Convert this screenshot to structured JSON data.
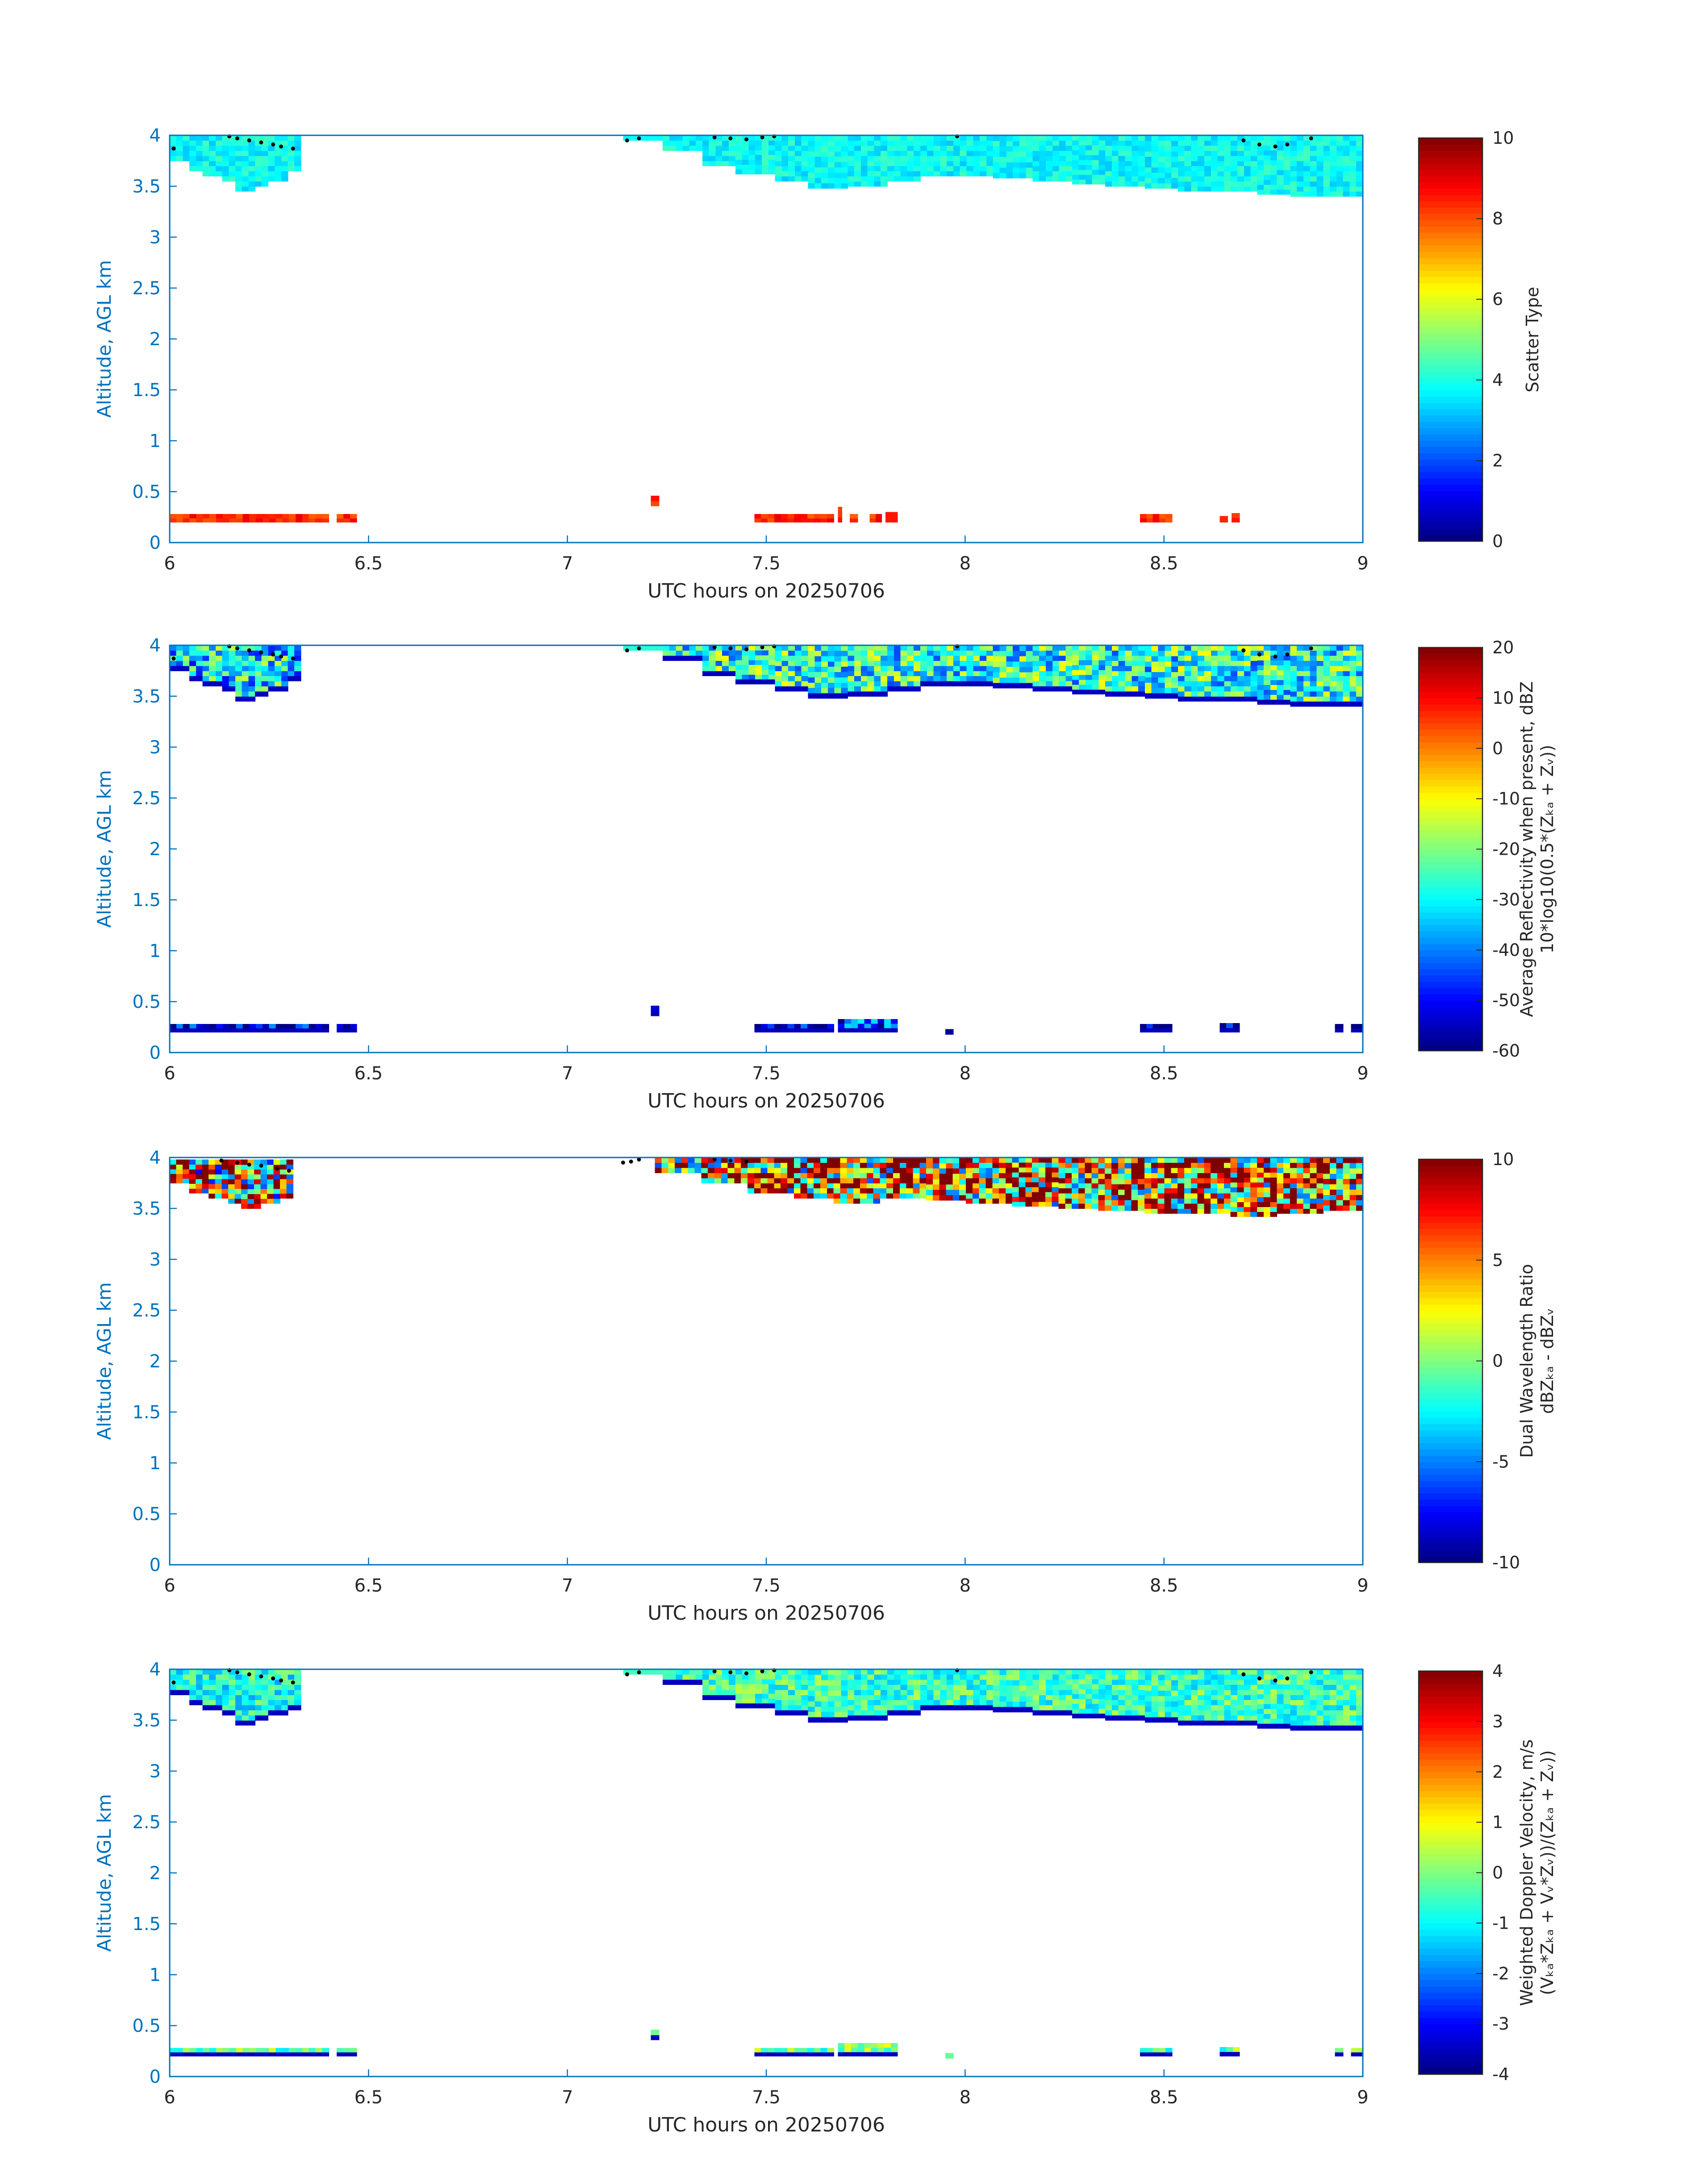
{
  "colors": {
    "axis": "#0072BD",
    "text": "#262626",
    "background": "#ffffff"
  },
  "chart_data": [
    {
      "type": "heatmap",
      "xlabel": "UTC hours on 20250706",
      "ylabel": "Altitude, AGL km",
      "xlim": [
        6,
        9
      ],
      "ylim": [
        0,
        4
      ],
      "xticks": [
        "6",
        "6.5",
        "7",
        "7.5",
        "8",
        "8.5",
        "9"
      ],
      "yticks": [
        "0",
        "0.5",
        "1",
        "1.5",
        "2",
        "2.5",
        "3",
        "3.5",
        "4"
      ],
      "colorbar": {
        "colormap": "jet",
        "range": [
          0,
          10
        ],
        "ticks": [
          "0",
          "2",
          "4",
          "6",
          "8",
          "10"
        ],
        "label": [
          "Scatter Type"
        ]
      },
      "blocks": [
        {
          "x": [
            6.0,
            6.33
          ],
          "y_bottom": [
            3.75,
            3.65,
            3.6,
            3.55,
            3.45,
            3.5,
            3.55,
            3.65
          ],
          "y_top": 4.0,
          "value": 3.8
        },
        {
          "x": [
            7.14,
            9.0
          ],
          "y_bottom": [
            3.95,
            3.85,
            3.7,
            3.62,
            3.55,
            3.48,
            3.5,
            3.55,
            3.6,
            3.6,
            3.58,
            3.55,
            3.52,
            3.5,
            3.48,
            3.45,
            3.45,
            3.42,
            3.4,
            3.4
          ],
          "y_top": 4.0,
          "value": 3.8
        },
        {
          "x": [
            6.0,
            6.4
          ],
          "y_bottom": [
            0.2
          ],
          "y_top": 0.28,
          "value": 8.4
        },
        {
          "x": [
            6.42,
            6.47
          ],
          "y_bottom": [
            0.2
          ],
          "y_top": 0.28,
          "value": 8.4
        },
        {
          "x": [
            7.21,
            7.23
          ],
          "y_bottom": [
            0.36
          ],
          "y_top": 0.46,
          "value": 8.4
        },
        {
          "x": [
            7.47,
            7.67
          ],
          "y_bottom": [
            0.2
          ],
          "y_top": 0.28,
          "value": 8.4
        },
        {
          "x": [
            7.68,
            7.69
          ],
          "y_bottom": [
            0.2
          ],
          "y_top": 0.35,
          "value": 8.4
        },
        {
          "x": [
            7.71,
            7.73
          ],
          "y_bottom": [
            0.2
          ],
          "y_top": 0.28,
          "value": 8.4
        },
        {
          "x": [
            7.76,
            7.79
          ],
          "y_bottom": [
            0.2
          ],
          "y_top": 0.28,
          "value": 8.4
        },
        {
          "x": [
            7.8,
            7.83
          ],
          "y_bottom": [
            0.2
          ],
          "y_top": 0.3,
          "value": 8.4
        },
        {
          "x": [
            8.44,
            8.52
          ],
          "y_bottom": [
            0.2
          ],
          "y_top": 0.28,
          "value": 8.4
        },
        {
          "x": [
            8.64,
            8.66
          ],
          "y_bottom": [
            0.2
          ],
          "y_top": 0.26,
          "value": 8.4
        },
        {
          "x": [
            8.67,
            8.69
          ],
          "y_bottom": [
            0.2
          ],
          "y_top": 0.29,
          "value": 8.4
        }
      ],
      "dots": [
        [
          6.01,
          3.87
        ],
        [
          6.15,
          3.99
        ],
        [
          6.17,
          3.97
        ],
        [
          6.2,
          3.95
        ],
        [
          6.23,
          3.93
        ],
        [
          6.26,
          3.91
        ],
        [
          6.28,
          3.89
        ],
        [
          6.31,
          3.87
        ],
        [
          7.15,
          3.95
        ],
        [
          7.18,
          3.97
        ],
        [
          7.37,
          3.98
        ],
        [
          7.41,
          3.97
        ],
        [
          7.45,
          3.96
        ],
        [
          7.49,
          3.98
        ],
        [
          7.52,
          3.99
        ],
        [
          7.98,
          3.99
        ],
        [
          8.7,
          3.95
        ],
        [
          8.74,
          3.91
        ],
        [
          8.78,
          3.89
        ],
        [
          8.81,
          3.91
        ],
        [
          8.87,
          3.97
        ]
      ]
    },
    {
      "type": "heatmap",
      "xlabel": "UTC hours on 20250706",
      "ylabel": "Altitude, AGL km",
      "xlim": [
        6,
        9
      ],
      "ylim": [
        0,
        4
      ],
      "xticks": [
        "6",
        "6.5",
        "7",
        "7.5",
        "8",
        "8.5",
        "9"
      ],
      "yticks": [
        "0",
        "0.5",
        "1",
        "1.5",
        "2",
        "2.5",
        "3",
        "3.5",
        "4"
      ],
      "colorbar": {
        "colormap": "jet",
        "range": [
          -60,
          20
        ],
        "ticks": [
          "-60",
          "-50",
          "-40",
          "-30",
          "-20",
          "-10",
          "0",
          "10",
          "20"
        ],
        "label": [
          "Average Reflectivity when present, dBZ",
          "10*log10(0.5*(Zₖₐ + Zᵥ))"
        ]
      },
      "blocks": [
        {
          "x": [
            6.0,
            6.33
          ],
          "y_bottom": [
            3.75,
            3.65,
            3.6,
            3.55,
            3.45,
            3.5,
            3.55,
            3.65
          ],
          "y_top": 4.0,
          "value": -32
        },
        {
          "x": [
            7.14,
            9.0
          ],
          "y_bottom": [
            3.95,
            3.85,
            3.7,
            3.62,
            3.55,
            3.48,
            3.5,
            3.55,
            3.6,
            3.6,
            3.58,
            3.55,
            3.52,
            3.5,
            3.48,
            3.45,
            3.45,
            3.42,
            3.4,
            3.4
          ],
          "y_top": 4.0,
          "value": -27
        },
        {
          "x": [
            6.0,
            6.4
          ],
          "y_bottom": [
            0.2
          ],
          "y_top": 0.28,
          "value": -55
        },
        {
          "x": [
            6.42,
            6.47
          ],
          "y_bottom": [
            0.2
          ],
          "y_top": 0.28,
          "value": -56
        },
        {
          "x": [
            7.21,
            7.23
          ],
          "y_bottom": [
            0.36
          ],
          "y_top": 0.46,
          "value": -45
        },
        {
          "x": [
            7.47,
            7.67
          ],
          "y_bottom": [
            0.2
          ],
          "y_top": 0.28,
          "value": -55
        },
        {
          "x": [
            7.68,
            7.83
          ],
          "y_bottom": [
            0.2
          ],
          "y_top": 0.33,
          "value": -48
        },
        {
          "x": [
            7.95,
            7.97
          ],
          "y_bottom": [
            0.18
          ],
          "y_top": 0.23,
          "value": -58
        },
        {
          "x": [
            8.44,
            8.52
          ],
          "y_bottom": [
            0.2
          ],
          "y_top": 0.28,
          "value": -57
        },
        {
          "x": [
            8.64,
            8.69
          ],
          "y_bottom": [
            0.2
          ],
          "y_top": 0.29,
          "value": -57
        },
        {
          "x": [
            8.93,
            8.95
          ],
          "y_bottom": [
            0.2
          ],
          "y_top": 0.28,
          "value": -58
        },
        {
          "x": [
            8.97,
            9.0
          ],
          "y_bottom": [
            0.2
          ],
          "y_top": 0.28,
          "value": -58
        }
      ],
      "dots": [
        [
          6.01,
          3.87
        ],
        [
          6.15,
          3.99
        ],
        [
          6.17,
          3.97
        ],
        [
          6.2,
          3.95
        ],
        [
          6.23,
          3.93
        ],
        [
          6.26,
          3.91
        ],
        [
          6.28,
          3.89
        ],
        [
          6.31,
          3.87
        ],
        [
          7.15,
          3.95
        ],
        [
          7.18,
          3.97
        ],
        [
          7.37,
          3.98
        ],
        [
          7.41,
          3.97
        ],
        [
          7.45,
          3.96
        ],
        [
          7.49,
          3.98
        ],
        [
          7.52,
          3.99
        ],
        [
          7.98,
          3.99
        ],
        [
          8.7,
          3.95
        ],
        [
          8.74,
          3.91
        ],
        [
          8.78,
          3.89
        ],
        [
          8.81,
          3.91
        ],
        [
          8.87,
          3.97
        ]
      ]
    },
    {
      "type": "heatmap",
      "xlabel": "UTC hours on 20250706",
      "ylabel": "Altitude, AGL km",
      "xlim": [
        6,
        9
      ],
      "ylim": [
        0,
        4
      ],
      "xticks": [
        "6",
        "6.5",
        "7",
        "7.5",
        "8",
        "8.5",
        "9"
      ],
      "yticks": [
        "0",
        "0.5",
        "1",
        "1.5",
        "2",
        "2.5",
        "3",
        "3.5",
        "4"
      ],
      "colorbar": {
        "colormap": "jet",
        "range": [
          -10,
          10
        ],
        "ticks": [
          "-10",
          "-5",
          "0",
          "5",
          "10"
        ],
        "label": [
          "Dual Wavelength Ratio",
          "dBZₖₐ - dBZᵥ"
        ]
      },
      "blocks": [
        {
          "x": [
            6.0,
            6.31
          ],
          "y_bottom": [
            3.75,
            3.65,
            3.6,
            3.55,
            3.5,
            3.55,
            3.6
          ],
          "y_top": 3.98,
          "value": 3.5
        },
        {
          "x": [
            7.22,
            9.0
          ],
          "y_bottom": [
            3.85,
            3.75,
            3.65,
            3.6,
            3.55,
            3.6,
            3.58,
            3.55,
            3.52,
            3.5,
            3.48,
            3.45,
            3.45,
            3.42,
            3.45,
            3.48
          ],
          "y_top": 4.0,
          "value": 5
        }
      ],
      "dots": [
        [
          6.13,
          3.97
        ],
        [
          6.17,
          3.95
        ],
        [
          6.2,
          3.93
        ],
        [
          6.23,
          3.92
        ],
        [
          6.27,
          3.89
        ],
        [
          6.3,
          3.87
        ],
        [
          7.14,
          3.95
        ],
        [
          7.16,
          3.96
        ],
        [
          7.18,
          3.98
        ],
        [
          7.37,
          3.98
        ],
        [
          7.41,
          3.97
        ],
        [
          7.45,
          3.96
        ]
      ]
    },
    {
      "type": "heatmap",
      "xlabel": "UTC hours on 20250706",
      "ylabel": "Altitude, AGL km",
      "xlim": [
        6,
        9
      ],
      "ylim": [
        0,
        4
      ],
      "xticks": [
        "6",
        "6.5",
        "7",
        "7.5",
        "8",
        "8.5",
        "9"
      ],
      "yticks": [
        "0",
        "0.5",
        "1",
        "1.5",
        "2",
        "2.5",
        "3",
        "3.5",
        "4"
      ],
      "colorbar": {
        "colormap": "jet",
        "range": [
          -4,
          4
        ],
        "ticks": [
          "-4",
          "-3",
          "-2",
          "-1",
          "0",
          "1",
          "2",
          "3",
          "4"
        ],
        "label": [
          "Weighted Doppler Velocity, m/s",
          "(Vₖₐ*Zₖₐ + Vᵥ*Zᵥ))/(Zₖₐ + Zᵥ))"
        ]
      },
      "blocks": [
        {
          "x": [
            6.0,
            6.33
          ],
          "y_bottom": [
            3.75,
            3.65,
            3.6,
            3.55,
            3.45,
            3.5,
            3.55,
            3.6
          ],
          "y_top": 4.0,
          "value": -0.8
        },
        {
          "x": [
            7.14,
            9.0
          ],
          "y_bottom": [
            3.95,
            3.85,
            3.7,
            3.62,
            3.55,
            3.48,
            3.5,
            3.55,
            3.6,
            3.6,
            3.58,
            3.55,
            3.52,
            3.5,
            3.48,
            3.45,
            3.45,
            3.42,
            3.4,
            3.4
          ],
          "y_top": 4.0,
          "value": -0.5
        },
        {
          "x": [
            6.0,
            6.4
          ],
          "y_bottom": [
            0.2
          ],
          "y_top": 0.28,
          "value": -0.2
        },
        {
          "x": [
            6.42,
            6.47
          ],
          "y_bottom": [
            0.2
          ],
          "y_top": 0.28,
          "value": -0.2
        },
        {
          "x": [
            7.21,
            7.23
          ],
          "y_bottom": [
            0.36
          ],
          "y_top": 0.46,
          "value": 0.4
        },
        {
          "x": [
            7.47,
            7.67
          ],
          "y_bottom": [
            0.2
          ],
          "y_top": 0.28,
          "value": -0.2
        },
        {
          "x": [
            7.68,
            7.83
          ],
          "y_bottom": [
            0.2
          ],
          "y_top": 0.33,
          "value": 0.1
        },
        {
          "x": [
            7.95,
            7.97
          ],
          "y_bottom": [
            0.18
          ],
          "y_top": 0.23,
          "value": -0.2
        },
        {
          "x": [
            8.44,
            8.52
          ],
          "y_bottom": [
            0.2
          ],
          "y_top": 0.28,
          "value": -0.3
        },
        {
          "x": [
            8.64,
            8.69
          ],
          "y_bottom": [
            0.2
          ],
          "y_top": 0.29,
          "value": -0.2
        },
        {
          "x": [
            8.93,
            8.95
          ],
          "y_bottom": [
            0.2
          ],
          "y_top": 0.28,
          "value": -0.2
        },
        {
          "x": [
            8.97,
            9.0
          ],
          "y_bottom": [
            0.2
          ],
          "y_top": 0.28,
          "value": -0.2
        }
      ],
      "dots": [
        [
          6.01,
          3.87
        ],
        [
          6.15,
          3.99
        ],
        [
          6.17,
          3.97
        ],
        [
          6.2,
          3.95
        ],
        [
          6.23,
          3.93
        ],
        [
          6.26,
          3.91
        ],
        [
          6.28,
          3.89
        ],
        [
          6.31,
          3.87
        ],
        [
          7.15,
          3.95
        ],
        [
          7.18,
          3.97
        ],
        [
          7.37,
          3.98
        ],
        [
          7.41,
          3.97
        ],
        [
          7.45,
          3.96
        ],
        [
          7.49,
          3.98
        ],
        [
          7.52,
          3.99
        ],
        [
          7.98,
          3.99
        ],
        [
          8.7,
          3.95
        ],
        [
          8.74,
          3.91
        ],
        [
          8.78,
          3.89
        ],
        [
          8.81,
          3.91
        ],
        [
          8.87,
          3.97
        ]
      ]
    }
  ]
}
